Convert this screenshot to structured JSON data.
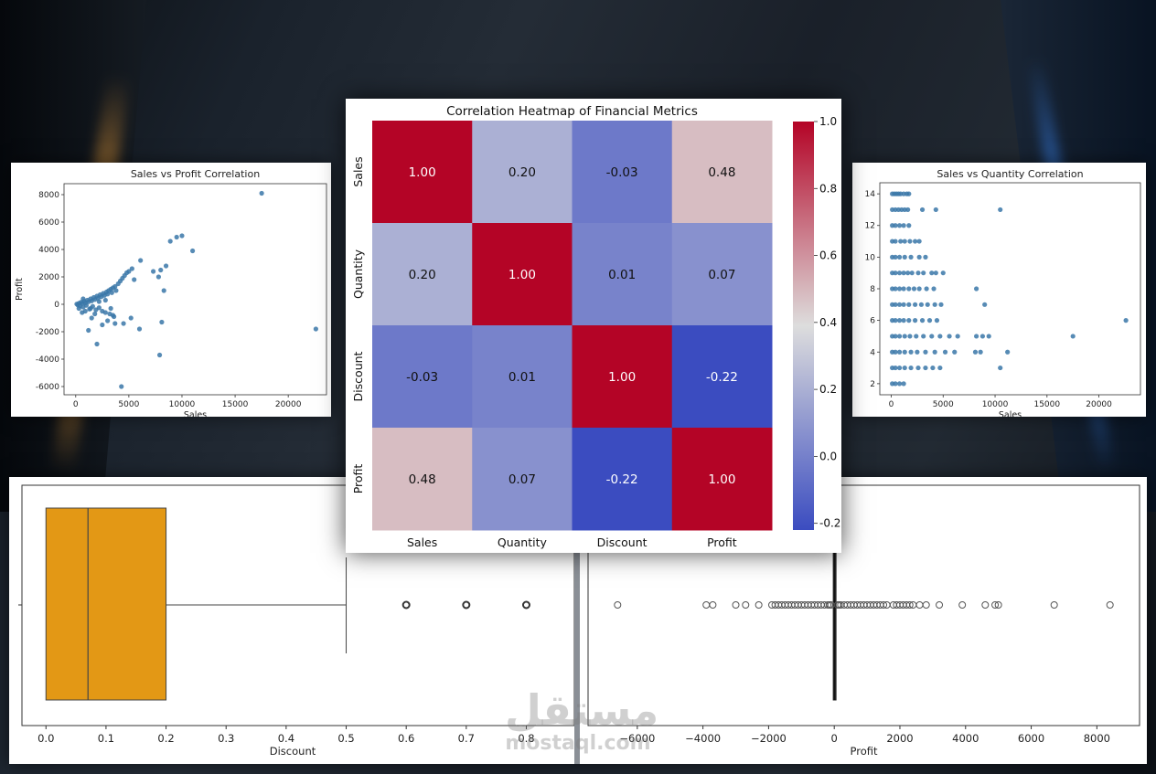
{
  "colors": {
    "scatter_point": "#3a77a8",
    "box_fill": "#e39815",
    "outline": "#222222",
    "heat_min": "#3b4cc0",
    "heat_mid": "#dddddd",
    "heat_max": "#b40426"
  },
  "watermark": {
    "arabic": "مستقل",
    "latin": "mostaql.com"
  },
  "chart_data": [
    {
      "id": "sales_profit",
      "type": "scatter",
      "title": "Sales vs Profit Correlation",
      "xlabel": "Sales",
      "ylabel": "Profit",
      "xlim": [
        -1100,
        23600
      ],
      "ylim": [
        -6600,
        8800
      ],
      "xticks": [
        0,
        5000,
        10000,
        15000,
        20000
      ],
      "yticks": [
        -6000,
        -4000,
        -2000,
        0,
        2000,
        4000,
        6000,
        8000
      ],
      "points": [
        [
          100,
          20
        ],
        [
          200,
          -50
        ],
        [
          300,
          80
        ],
        [
          400,
          -120
        ],
        [
          500,
          150
        ],
        [
          600,
          60
        ],
        [
          700,
          -200
        ],
        [
          800,
          220
        ],
        [
          900,
          100
        ],
        [
          1000,
          -80
        ],
        [
          1100,
          300
        ],
        [
          1200,
          180
        ],
        [
          1300,
          -350
        ],
        [
          1400,
          400
        ],
        [
          1500,
          250
        ],
        [
          1600,
          -150
        ],
        [
          1700,
          500
        ],
        [
          1800,
          350
        ],
        [
          1900,
          -400
        ],
        [
          2000,
          600
        ],
        [
          2100,
          450
        ],
        [
          2200,
          -250
        ],
        [
          2300,
          700
        ],
        [
          2400,
          550
        ],
        [
          2500,
          -500
        ],
        [
          2600,
          800
        ],
        [
          2700,
          650
        ],
        [
          2800,
          300
        ],
        [
          2900,
          900
        ],
        [
          3000,
          750
        ],
        [
          3100,
          1000
        ],
        [
          3200,
          -700
        ],
        [
          3300,
          1100
        ],
        [
          3400,
          850
        ],
        [
          3500,
          1200
        ],
        [
          3600,
          -900
        ],
        [
          3700,
          1300
        ],
        [
          3800,
          1000
        ],
        [
          4000,
          1500
        ],
        [
          4200,
          1700
        ],
        [
          4400,
          1900
        ],
        [
          4600,
          2100
        ],
        [
          4800,
          2300
        ],
        [
          5000,
          2400
        ],
        [
          5300,
          2600
        ],
        [
          5500,
          1800
        ],
        [
          6100,
          3200
        ],
        [
          7300,
          2400
        ],
        [
          7800,
          2000
        ],
        [
          8000,
          2500
        ],
        [
          8500,
          2800
        ],
        [
          8900,
          4600
        ],
        [
          9500,
          4900
        ],
        [
          10000,
          5000
        ],
        [
          11000,
          3900
        ],
        [
          8300,
          1000
        ],
        [
          8100,
          -1300
        ],
        [
          7900,
          -3700
        ],
        [
          6000,
          -1800
        ],
        [
          5200,
          -1000
        ],
        [
          4500,
          -1400
        ],
        [
          2000,
          -2900
        ],
        [
          1200,
          -1900
        ],
        [
          3700,
          -1400
        ],
        [
          4300,
          -6000
        ],
        [
          17500,
          8100
        ],
        [
          22600,
          -1800
        ],
        [
          300,
          -300
        ],
        [
          600,
          -600
        ],
        [
          1500,
          -1000
        ],
        [
          2500,
          -1500
        ],
        [
          3000,
          -1200
        ],
        [
          3500,
          -800
        ],
        [
          2800,
          -600
        ],
        [
          1800,
          -700
        ],
        [
          900,
          -500
        ],
        [
          700,
          400
        ],
        [
          1400,
          -300
        ],
        [
          2200,
          200
        ],
        [
          3300,
          -300
        ]
      ]
    },
    {
      "id": "sales_quantity",
      "type": "scatter",
      "title": "Sales vs Quantity Correlation",
      "xlabel": "Sales",
      "ylabel": "Quantity",
      "xlim": [
        -1100,
        24000
      ],
      "ylim": [
        1.3,
        14.7
      ],
      "xticks": [
        0,
        5000,
        10000,
        15000,
        20000
      ],
      "yticks": [
        2,
        4,
        6,
        8,
        10,
        12,
        14
      ],
      "points": [
        [
          100,
          14
        ],
        [
          300,
          14
        ],
        [
          500,
          14
        ],
        [
          700,
          14
        ],
        [
          900,
          14
        ],
        [
          1200,
          14
        ],
        [
          1500,
          14
        ],
        [
          1700,
          14
        ],
        [
          100,
          13
        ],
        [
          400,
          13
        ],
        [
          700,
          13
        ],
        [
          1000,
          13
        ],
        [
          1300,
          13
        ],
        [
          1600,
          13
        ],
        [
          3000,
          13
        ],
        [
          4300,
          13
        ],
        [
          10500,
          13
        ],
        [
          100,
          12
        ],
        [
          400,
          12
        ],
        [
          800,
          12
        ],
        [
          1200,
          12
        ],
        [
          1700,
          12
        ],
        [
          100,
          11
        ],
        [
          400,
          11
        ],
        [
          900,
          11
        ],
        [
          1300,
          11
        ],
        [
          1800,
          11
        ],
        [
          2300,
          11
        ],
        [
          2700,
          11
        ],
        [
          100,
          10
        ],
        [
          400,
          10
        ],
        [
          800,
          10
        ],
        [
          1300,
          10
        ],
        [
          1900,
          10
        ],
        [
          2700,
          10
        ],
        [
          3300,
          10
        ],
        [
          100,
          9
        ],
        [
          400,
          9
        ],
        [
          800,
          9
        ],
        [
          1200,
          9
        ],
        [
          1600,
          9
        ],
        [
          2000,
          9
        ],
        [
          2600,
          9
        ],
        [
          3100,
          9
        ],
        [
          3900,
          9
        ],
        [
          4300,
          9
        ],
        [
          5000,
          9
        ],
        [
          100,
          8
        ],
        [
          400,
          8
        ],
        [
          800,
          8
        ],
        [
          1200,
          8
        ],
        [
          1700,
          8
        ],
        [
          2200,
          8
        ],
        [
          2700,
          8
        ],
        [
          3400,
          8
        ],
        [
          4100,
          8
        ],
        [
          8200,
          8
        ],
        [
          100,
          7
        ],
        [
          400,
          7
        ],
        [
          800,
          7
        ],
        [
          1200,
          7
        ],
        [
          1700,
          7
        ],
        [
          2300,
          7
        ],
        [
          2900,
          7
        ],
        [
          3500,
          7
        ],
        [
          4200,
          7
        ],
        [
          4800,
          7
        ],
        [
          9000,
          7
        ],
        [
          100,
          6
        ],
        [
          400,
          6
        ],
        [
          800,
          6
        ],
        [
          1200,
          6
        ],
        [
          1700,
          6
        ],
        [
          2300,
          6
        ],
        [
          3000,
          6
        ],
        [
          3700,
          6
        ],
        [
          4400,
          6
        ],
        [
          22600,
          6
        ],
        [
          100,
          5
        ],
        [
          400,
          5
        ],
        [
          800,
          5
        ],
        [
          1300,
          5
        ],
        [
          1800,
          5
        ],
        [
          2400,
          5
        ],
        [
          3100,
          5
        ],
        [
          3900,
          5
        ],
        [
          4700,
          5
        ],
        [
          5600,
          5
        ],
        [
          6400,
          5
        ],
        [
          8200,
          5
        ],
        [
          8800,
          5
        ],
        [
          9400,
          5
        ],
        [
          17500,
          5
        ],
        [
          100,
          4
        ],
        [
          400,
          4
        ],
        [
          800,
          4
        ],
        [
          1300,
          4
        ],
        [
          1900,
          4
        ],
        [
          2500,
          4
        ],
        [
          3300,
          4
        ],
        [
          4200,
          4
        ],
        [
          5200,
          4
        ],
        [
          6100,
          4
        ],
        [
          8100,
          4
        ],
        [
          8600,
          4
        ],
        [
          11200,
          4
        ],
        [
          100,
          3
        ],
        [
          400,
          3
        ],
        [
          800,
          3
        ],
        [
          1300,
          3
        ],
        [
          1900,
          3
        ],
        [
          2600,
          3
        ],
        [
          3300,
          3
        ],
        [
          4000,
          3
        ],
        [
          4700,
          3
        ],
        [
          10500,
          3
        ],
        [
          100,
          2
        ],
        [
          400,
          2
        ],
        [
          800,
          2
        ],
        [
          1200,
          2
        ]
      ]
    },
    {
      "id": "heatmap",
      "type": "heatmap",
      "title": "Correlation Heatmap of Financial Metrics",
      "labels": [
        "Sales",
        "Quantity",
        "Discount",
        "Profit"
      ],
      "values": [
        [
          1.0,
          0.2,
          -0.03,
          0.48
        ],
        [
          0.2,
          1.0,
          0.01,
          0.07
        ],
        [
          -0.03,
          0.01,
          1.0,
          -0.22
        ],
        [
          0.48,
          0.07,
          -0.22,
          1.0
        ]
      ],
      "cell_text": [
        [
          "1.00",
          "0.20",
          "-0.03",
          "0.48"
        ],
        [
          "0.20",
          "1.00",
          "0.01",
          "0.07"
        ],
        [
          "-0.03",
          "0.01",
          "1.00",
          "-0.22"
        ],
        [
          "0.48",
          "0.07",
          "-0.22",
          "1.00"
        ]
      ],
      "colorbar_ticks": [
        "1.0",
        "0.8",
        "0.6",
        "0.4",
        "0.2",
        "0.0",
        "-0.2"
      ],
      "vmin": -0.22,
      "vmax": 1.0
    },
    {
      "id": "discount_box",
      "type": "box",
      "xlabel": "Discount",
      "xlim": [
        -0.04,
        0.88
      ],
      "xticks": [
        "0.0",
        "0.1",
        "0.2",
        "0.3",
        "0.4",
        "0.5",
        "0.6",
        "0.7",
        "0.8"
      ],
      "min": 0.0,
      "q1": 0.0,
      "median": 0.07,
      "q3": 0.2,
      "max": 0.5,
      "outliers": [
        0.6,
        0.7,
        0.8
      ]
    },
    {
      "id": "profit_box",
      "type": "box",
      "xlabel": "Profit",
      "xlim": [
        -7500,
        9300
      ],
      "xticks": [
        "−6000",
        "−4000",
        "−2000",
        "0",
        "2000",
        "4000",
        "6000",
        "8000"
      ],
      "q1": -2,
      "median": 9,
      "q3": 29,
      "outliers": [
        -6600,
        -3900,
        -3700,
        -3000,
        -2700,
        -2300,
        -1900,
        -1800,
        -1700,
        -1600,
        -1500,
        -1400,
        -1300,
        -1200,
        -1100,
        -1000,
        -900,
        -800,
        -700,
        -600,
        -500,
        -400,
        -300,
        -200,
        -150,
        -100,
        100,
        150,
        200,
        300,
        400,
        500,
        600,
        700,
        800,
        900,
        1000,
        1100,
        1200,
        1300,
        1400,
        1500,
        1600,
        1800,
        1900,
        2000,
        2100,
        2200,
        2300,
        2400,
        2600,
        2800,
        3200,
        3900,
        4600,
        4900,
        5000,
        6700,
        8400
      ]
    }
  ]
}
